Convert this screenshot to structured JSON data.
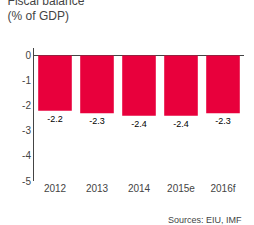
{
  "chart_data": {
    "type": "bar",
    "title": "Fiscal balance",
    "subtitle": "(% of GDP)",
    "annotations": [
      "Sources: EIU, IMF"
    ],
    "categories": [
      "2012",
      "2013",
      "2014",
      "2015e",
      "2016f"
    ],
    "values": [
      -2.2,
      -2.3,
      -2.4,
      -2.4,
      -2.3
    ],
    "color": "#e8003c",
    "ylim": [
      -5,
      0.3
    ],
    "yticks": [
      0,
      -1,
      -2,
      -3,
      -4,
      -5
    ],
    "data_labels": true,
    "grid": false
  }
}
